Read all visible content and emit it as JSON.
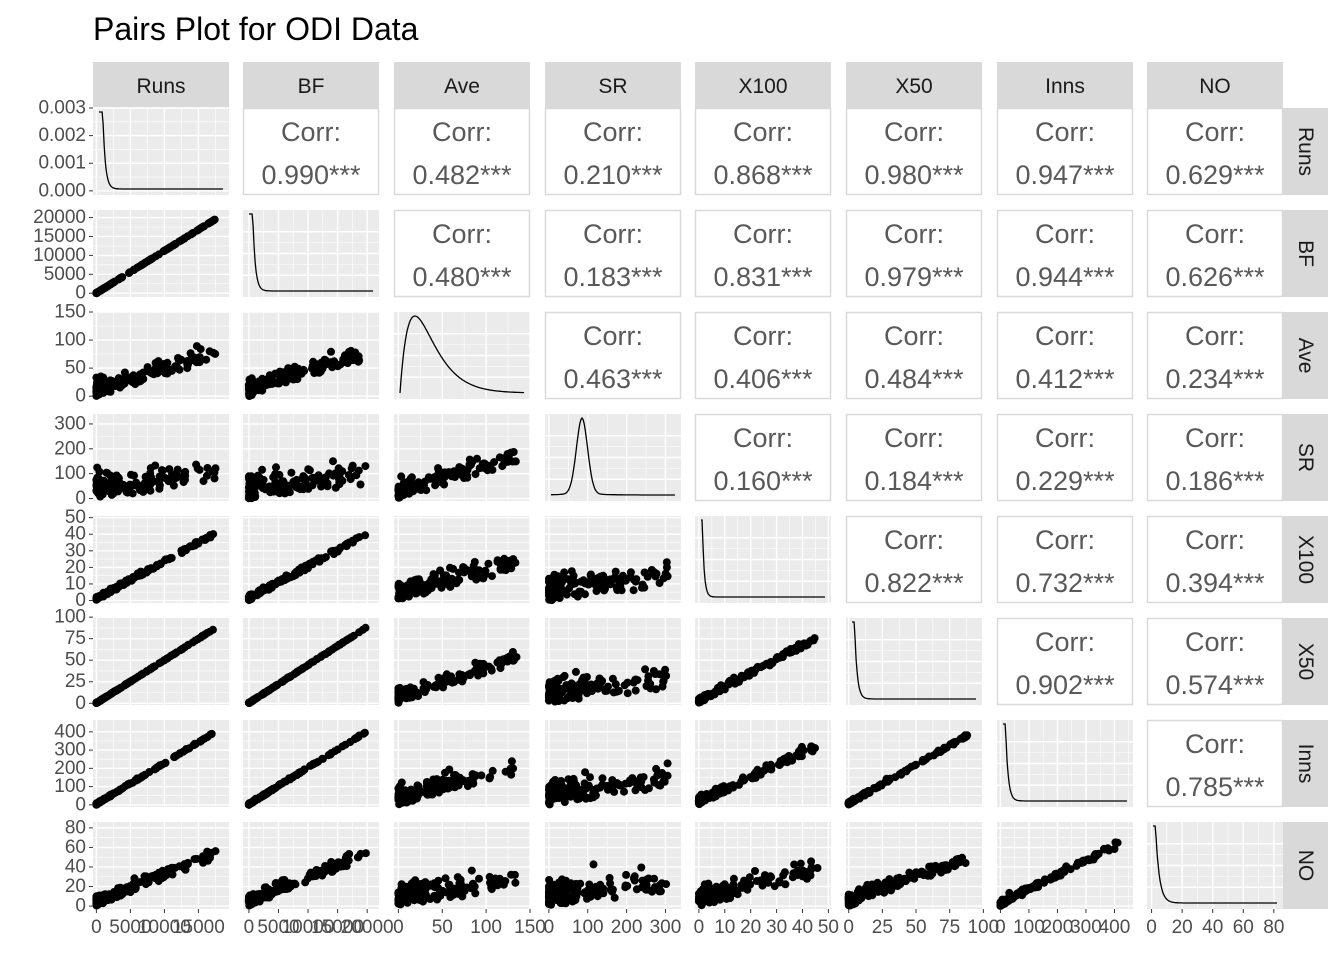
{
  "chart_data": {
    "type": "scatter",
    "title": "Pairs Plot for ODI Data",
    "variables": [
      "Runs",
      "BF",
      "Ave",
      "SR",
      "X100",
      "X50",
      "Inns",
      "NO"
    ],
    "corr_label": "Corr:",
    "correlations": [
      [
        "",
        "0.990***",
        "0.482***",
        "0.210***",
        "0.868***",
        "0.980***",
        "0.947***",
        "0.629***"
      ],
      [
        "",
        "",
        "0.480***",
        "0.183***",
        "0.831***",
        "0.979***",
        "0.944***",
        "0.626***"
      ],
      [
        "",
        "",
        "",
        "0.463***",
        "0.406***",
        "0.484***",
        "0.412***",
        "0.234***"
      ],
      [
        "",
        "",
        "",
        "",
        "0.160***",
        "0.184***",
        "0.229***",
        "0.186***"
      ],
      [
        "",
        "",
        "",
        "",
        "",
        "0.822***",
        "0.732***",
        "0.394***"
      ],
      [
        "",
        "",
        "",
        "",
        "",
        "",
        "0.902***",
        "0.574***"
      ],
      [
        "",
        "",
        "",
        "",
        "",
        "",
        "",
        "0.785***"
      ],
      [
        "",
        "",
        "",
        "",
        "",
        "",
        "",
        ""
      ]
    ],
    "x_axes": [
      {
        "var": "Runs",
        "range": [
          -500,
          19500
        ],
        "ticks": [
          0,
          5000,
          10000,
          15000
        ],
        "labels": [
          "0",
          "5000",
          "10000",
          "15000"
        ]
      },
      {
        "var": "BF",
        "range": [
          -1000,
          22000
        ],
        "ticks": [
          0,
          5000,
          10000,
          15000,
          20000
        ],
        "labels": [
          "0",
          "5000",
          "10000",
          "15000",
          "20000"
        ]
      },
      {
        "var": "Ave",
        "range": [
          -5,
          150
        ],
        "ticks": [
          0,
          50,
          100,
          150
        ],
        "labels": [
          "0",
          "50",
          "100",
          "150"
        ]
      },
      {
        "var": "SR",
        "range": [
          -10,
          340
        ],
        "ticks": [
          0,
          100,
          200,
          300
        ],
        "labels": [
          "0",
          "100",
          "200",
          "300"
        ]
      },
      {
        "var": "X100",
        "range": [
          -1.5,
          51
        ],
        "ticks": [
          0,
          10,
          20,
          30,
          40,
          50
        ],
        "labels": [
          "0",
          "10",
          "20",
          "30",
          "40",
          "50"
        ]
      },
      {
        "var": "X50",
        "range": [
          -2,
          99
        ],
        "ticks": [
          0,
          25,
          50,
          75,
          100
        ],
        "labels": [
          "0",
          "25",
          "50",
          "75",
          "100"
        ]
      },
      {
        "var": "Inns",
        "range": [
          -12,
          465
        ],
        "ticks": [
          0,
          100,
          200,
          300,
          400
        ],
        "labels": [
          "0",
          "100",
          "200",
          "300",
          "400"
        ]
      },
      {
        "var": "NO",
        "range": [
          -3,
          86
        ],
        "ticks": [
          0,
          20,
          40,
          60,
          80
        ],
        "labels": [
          "0",
          "20",
          "40",
          "60",
          "80"
        ]
      }
    ],
    "y_axes": [
      {
        "var": "Runs",
        "range": [
          -0.00015,
          0.003
        ],
        "ticks": [
          0,
          0.001,
          0.002,
          0.003
        ],
        "labels": [
          "0.000",
          "0.001",
          "0.002",
          "0.003"
        ]
      },
      {
        "var": "BF",
        "range": [
          -1000,
          22000
        ],
        "ticks": [
          0,
          5000,
          10000,
          15000,
          20000
        ],
        "labels": [
          "0",
          "5000",
          "10000",
          "15000",
          "20000"
        ]
      },
      {
        "var": "Ave",
        "range": [
          -5,
          150
        ],
        "ticks": [
          0,
          50,
          100,
          150
        ],
        "labels": [
          "0",
          "50",
          "100",
          "150"
        ]
      },
      {
        "var": "SR",
        "range": [
          -10,
          340
        ],
        "ticks": [
          0,
          100,
          200,
          300
        ],
        "labels": [
          "0",
          "100",
          "200",
          "300"
        ]
      },
      {
        "var": "X100",
        "range": [
          -1.5,
          51
        ],
        "ticks": [
          0,
          10,
          20,
          30,
          40,
          50
        ],
        "labels": [
          "0",
          "10",
          "20",
          "30",
          "40",
          "50"
        ]
      },
      {
        "var": "X50",
        "range": [
          -2,
          99
        ],
        "ticks": [
          0,
          25,
          50,
          75,
          100
        ],
        "labels": [
          "0",
          "25",
          "50",
          "75",
          "100"
        ]
      },
      {
        "var": "Inns",
        "range": [
          -12,
          465
        ],
        "ticks": [
          0,
          100,
          200,
          300,
          400
        ],
        "labels": [
          "0",
          "100",
          "200",
          "300",
          "400"
        ]
      },
      {
        "var": "NO",
        "range": [
          -3,
          86
        ],
        "ticks": [
          0,
          20,
          40,
          60,
          80
        ],
        "labels": [
          "0",
          "20",
          "40",
          "60",
          "80"
        ]
      }
    ],
    "lower_panels": "scatter",
    "diagonal_panels": "density",
    "upper_panels": "correlation",
    "grid": true,
    "colors": {
      "panel_bg": "#ebebeb",
      "grid": "#ffffff",
      "strip_bg": "#d9d9d9",
      "points": "#000000",
      "corr_text": "#595959"
    }
  }
}
